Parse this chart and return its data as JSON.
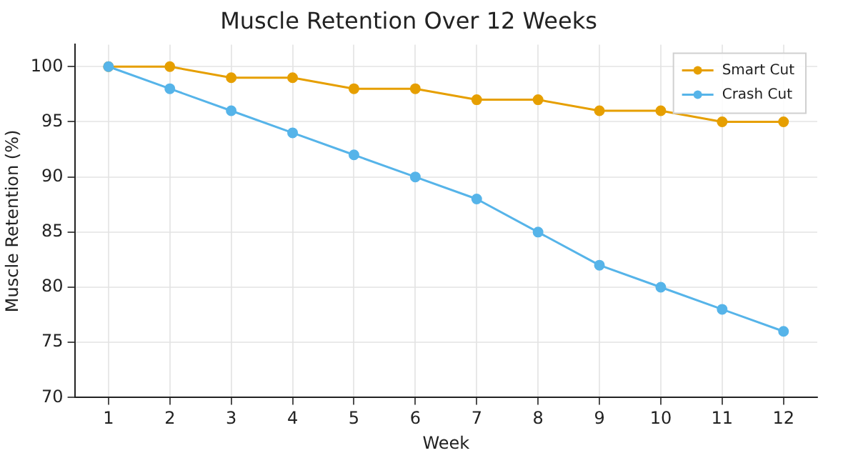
{
  "chart_data": {
    "type": "line",
    "title": "Muscle Retention Over 12 Weeks",
    "xlabel": "Week",
    "ylabel": "Muscle Retention (%)",
    "x": [
      1,
      2,
      3,
      4,
      5,
      6,
      7,
      8,
      9,
      10,
      11,
      12
    ],
    "series": [
      {
        "name": "Smart Cut",
        "color": "#e69f00",
        "values": [
          100,
          100,
          99,
          99,
          98,
          98,
          97,
          97,
          96,
          96,
          95,
          95
        ]
      },
      {
        "name": "Crash Cut",
        "color": "#56b4e9",
        "values": [
          100,
          98,
          96,
          94,
          92,
          90,
          88,
          85,
          82,
          80,
          78,
          76
        ]
      }
    ],
    "xlim": [
      0.45,
      12.55
    ],
    "xticks": [
      1,
      2,
      3,
      4,
      5,
      6,
      7,
      8,
      9,
      10,
      11,
      12
    ],
    "ylim": [
      70,
      102
    ],
    "yticks": [
      70,
      75,
      80,
      85,
      90,
      95,
      100
    ],
    "grid": true,
    "legend": "top right",
    "marker": "circle",
    "line_style": "solid"
  }
}
